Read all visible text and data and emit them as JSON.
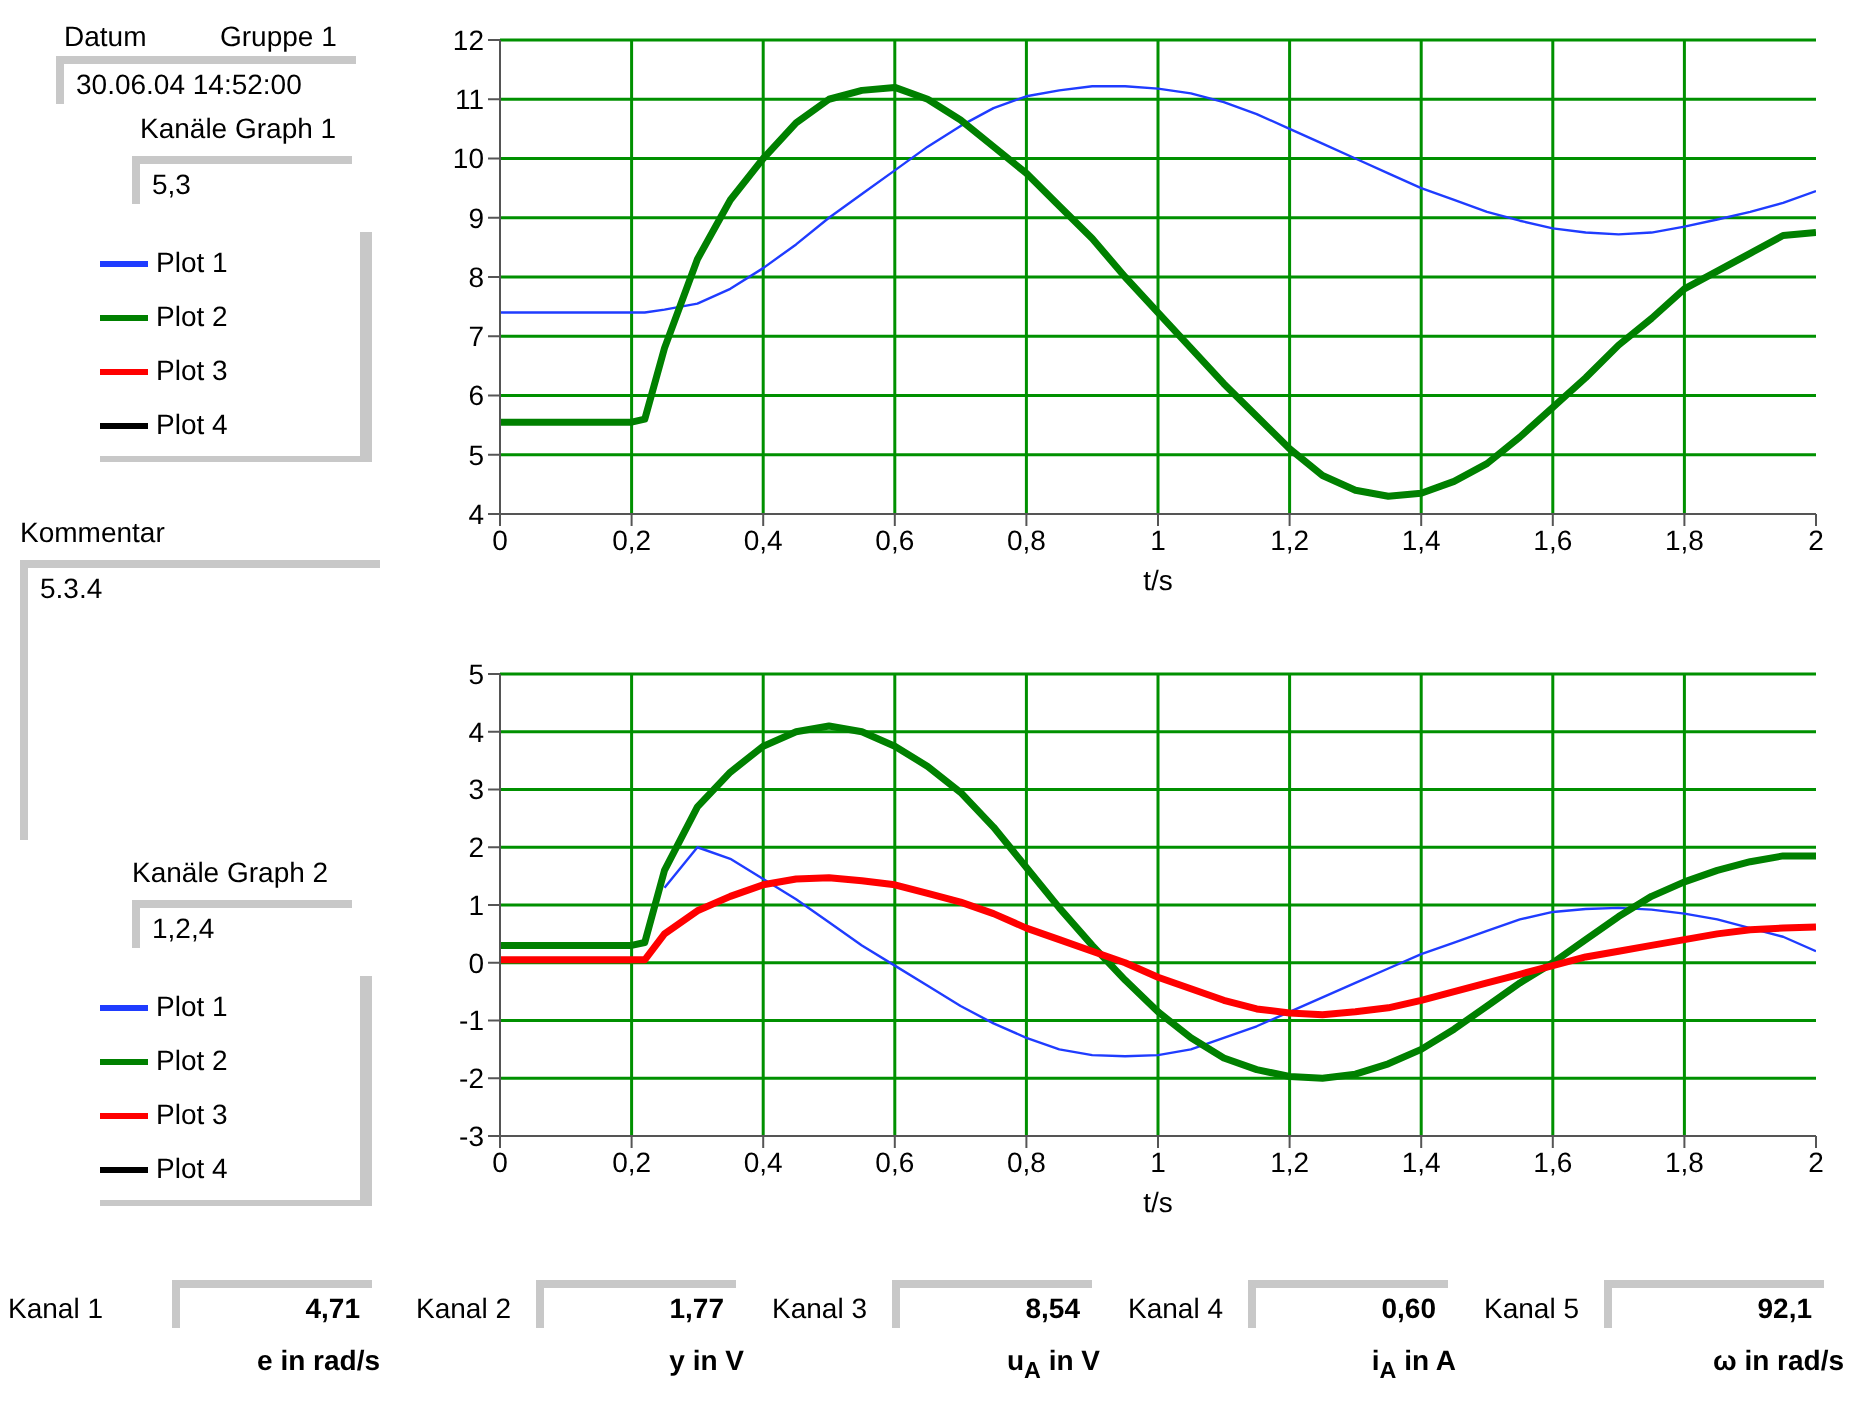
{
  "chart_data": [
    {
      "type": "line",
      "xlabel": "t/s",
      "x": [
        0,
        0.1,
        0.2,
        0.22,
        0.25,
        0.3,
        0.35,
        0.4,
        0.45,
        0.5,
        0.55,
        0.6,
        0.65,
        0.7,
        0.75,
        0.8,
        0.85,
        0.9,
        0.95,
        1,
        1.05,
        1.1,
        1.15,
        1.2,
        1.25,
        1.3,
        1.35,
        1.4,
        1.45,
        1.5,
        1.55,
        1.6,
        1.65,
        1.7,
        1.75,
        1.8,
        1.85,
        1.9,
        1.95,
        2
      ],
      "series": [
        {
          "name": "Plot 1",
          "color": "#1f3cff",
          "values": [
            7.4,
            7.4,
            7.4,
            7.4,
            7.45,
            7.55,
            7.8,
            8.15,
            8.55,
            9.0,
            9.4,
            9.8,
            10.2,
            10.55,
            10.85,
            11.05,
            11.15,
            11.22,
            11.22,
            11.18,
            11.1,
            10.95,
            10.75,
            10.5,
            10.25,
            10.0,
            9.75,
            9.5,
            9.3,
            9.1,
            8.95,
            8.82,
            8.75,
            8.72,
            8.75,
            8.85,
            8.97,
            9.1,
            9.25,
            9.45
          ]
        },
        {
          "name": "Plot 2",
          "color": "#008000",
          "values": [
            5.55,
            5.55,
            5.55,
            5.6,
            6.8,
            8.3,
            9.3,
            10.0,
            10.6,
            11.0,
            11.15,
            11.2,
            11.0,
            10.65,
            10.2,
            9.75,
            9.2,
            8.65,
            8.0,
            7.4,
            6.8,
            6.2,
            5.65,
            5.1,
            4.65,
            4.4,
            4.3,
            4.35,
            4.55,
            4.85,
            5.3,
            5.8,
            6.3,
            6.85,
            7.3,
            7.8,
            8.1,
            8.4,
            8.7,
            8.75
          ]
        },
        {
          "name": "Plot 3",
          "color": "#ff0000",
          "values": [
            null,
            null,
            null,
            null,
            null,
            null,
            null,
            null,
            null,
            null,
            null,
            null,
            null,
            null,
            null,
            null,
            null,
            null,
            null,
            null,
            null,
            null,
            null,
            null,
            null,
            null,
            null,
            null,
            null,
            null,
            null,
            null,
            null,
            null,
            null,
            null,
            null,
            null,
            null,
            null
          ]
        },
        {
          "name": "Plot 4",
          "color": "#000000",
          "values": [
            null,
            null,
            null,
            null,
            null,
            null,
            null,
            null,
            null,
            null,
            null,
            null,
            null,
            null,
            null,
            null,
            null,
            null,
            null,
            null,
            null,
            null,
            null,
            null,
            null,
            null,
            null,
            null,
            null,
            null,
            null,
            null,
            null,
            null,
            null,
            null,
            null,
            null,
            null,
            null
          ]
        }
      ],
      "xlim": [
        0,
        2
      ],
      "xticks": [
        0,
        {
          "value": 0.2,
          "label": "0,2"
        },
        {
          "value": 0.4,
          "label": "0,4"
        },
        {
          "value": 0.6,
          "label": "0,6"
        },
        {
          "value": 0.8,
          "label": "0,8"
        },
        1,
        {
          "value": 1.2,
          "label": "1,2"
        },
        {
          "value": 1.4,
          "label": "1,4"
        },
        {
          "value": 1.6,
          "label": "1,6"
        },
        {
          "value": 1.8,
          "label": "1,8"
        },
        2
      ],
      "ylim": [
        4,
        12
      ],
      "yticks": [
        4,
        5,
        6,
        7,
        8,
        9,
        10,
        11,
        12
      ],
      "grid": true,
      "legend": "left",
      "annotations": [
        "Datum",
        "Gruppe 1",
        "30.06.04 14:52:00",
        "Kanäle Graph 1",
        "5,3",
        "Kommentar",
        "5.3.4"
      ]
    },
    {
      "type": "line",
      "xlabel": "t/s",
      "x": [
        0,
        0.1,
        0.2,
        0.22,
        0.25,
        0.3,
        0.35,
        0.4,
        0.45,
        0.5,
        0.55,
        0.6,
        0.65,
        0.7,
        0.75,
        0.8,
        0.85,
        0.9,
        0.95,
        1,
        1.05,
        1.1,
        1.15,
        1.2,
        1.25,
        1.3,
        1.35,
        1.4,
        1.45,
        1.5,
        1.55,
        1.6,
        1.65,
        1.7,
        1.75,
        1.8,
        1.85,
        1.9,
        1.95,
        2
      ],
      "series": [
        {
          "name": "Plot 1",
          "color": "#1f3cff",
          "values": [
            null,
            null,
            null,
            null,
            1.3,
            2.0,
            1.8,
            1.45,
            1.1,
            0.7,
            0.3,
            -0.05,
            -0.4,
            -0.75,
            -1.05,
            -1.3,
            -1.5,
            -1.6,
            -1.62,
            -1.6,
            -1.5,
            -1.3,
            -1.1,
            -0.85,
            -0.6,
            -0.35,
            -0.1,
            0.15,
            0.35,
            0.55,
            0.75,
            0.88,
            0.93,
            0.95,
            0.92,
            0.85,
            0.75,
            0.6,
            0.45,
            0.2
          ]
        },
        {
          "name": "Plot 2",
          "color": "#008000",
          "values": [
            0.3,
            0.3,
            0.3,
            0.35,
            1.6,
            2.7,
            3.3,
            3.75,
            4.0,
            4.1,
            4.0,
            3.75,
            3.4,
            2.95,
            2.35,
            1.65,
            0.95,
            0.3,
            -0.3,
            -0.85,
            -1.3,
            -1.65,
            -1.85,
            -1.97,
            -2.0,
            -1.93,
            -1.75,
            -1.5,
            -1.15,
            -0.75,
            -0.35,
            0.0,
            0.4,
            0.8,
            1.15,
            1.4,
            1.6,
            1.75,
            1.85,
            1.85
          ]
        },
        {
          "name": "Plot 3",
          "color": "#ff0000",
          "values": [
            0.05,
            0.05,
            0.05,
            0.05,
            0.5,
            0.9,
            1.15,
            1.35,
            1.45,
            1.47,
            1.42,
            1.35,
            1.2,
            1.05,
            0.85,
            0.6,
            0.4,
            0.2,
            0.0,
            -0.25,
            -0.45,
            -0.65,
            -0.8,
            -0.87,
            -0.9,
            -0.85,
            -0.78,
            -0.65,
            -0.5,
            -0.35,
            -0.2,
            -0.05,
            0.1,
            0.2,
            0.3,
            0.4,
            0.5,
            0.57,
            0.6,
            0.62
          ]
        },
        {
          "name": "Plot 4",
          "color": "#000000",
          "values": [
            null,
            null,
            null,
            null,
            null,
            null,
            null,
            null,
            null,
            null,
            null,
            null,
            null,
            null,
            null,
            null,
            null,
            null,
            null,
            null,
            null,
            null,
            null,
            null,
            null,
            null,
            null,
            null,
            null,
            null,
            null,
            null,
            null,
            null,
            null,
            null,
            null,
            null,
            null,
            null
          ]
        }
      ],
      "xlim": [
        0,
        2
      ],
      "xticks": [
        0,
        {
          "value": 0.2,
          "label": "0,2"
        },
        {
          "value": 0.4,
          "label": "0,4"
        },
        {
          "value": 0.6,
          "label": "0,6"
        },
        {
          "value": 0.8,
          "label": "0,8"
        },
        1,
        {
          "value": 1.2,
          "label": "1,2"
        },
        {
          "value": 1.4,
          "label": "1,4"
        },
        {
          "value": 1.6,
          "label": "1,6"
        },
        {
          "value": 1.8,
          "label": "1,8"
        },
        2
      ],
      "ylim": [
        -3,
        5
      ],
      "yticks": [
        -3,
        -2,
        -1,
        0,
        1,
        2,
        3,
        4,
        5
      ],
      "grid": true,
      "legend": "left",
      "annotations": [
        "Kanäle Graph 2",
        "1,2,4",
        "Kanal 1",
        "4,71",
        "e in rad/s",
        "Kanal 2",
        "1,77",
        "y in V",
        "Kanal 3",
        "8,54",
        "u$_{A}$ in V",
        "Kanal 4",
        "0,60",
        "i$_{A}$ in A",
        "Kanal 5",
        "92,1",
        "ω in rad/s"
      ]
    }
  ]
}
